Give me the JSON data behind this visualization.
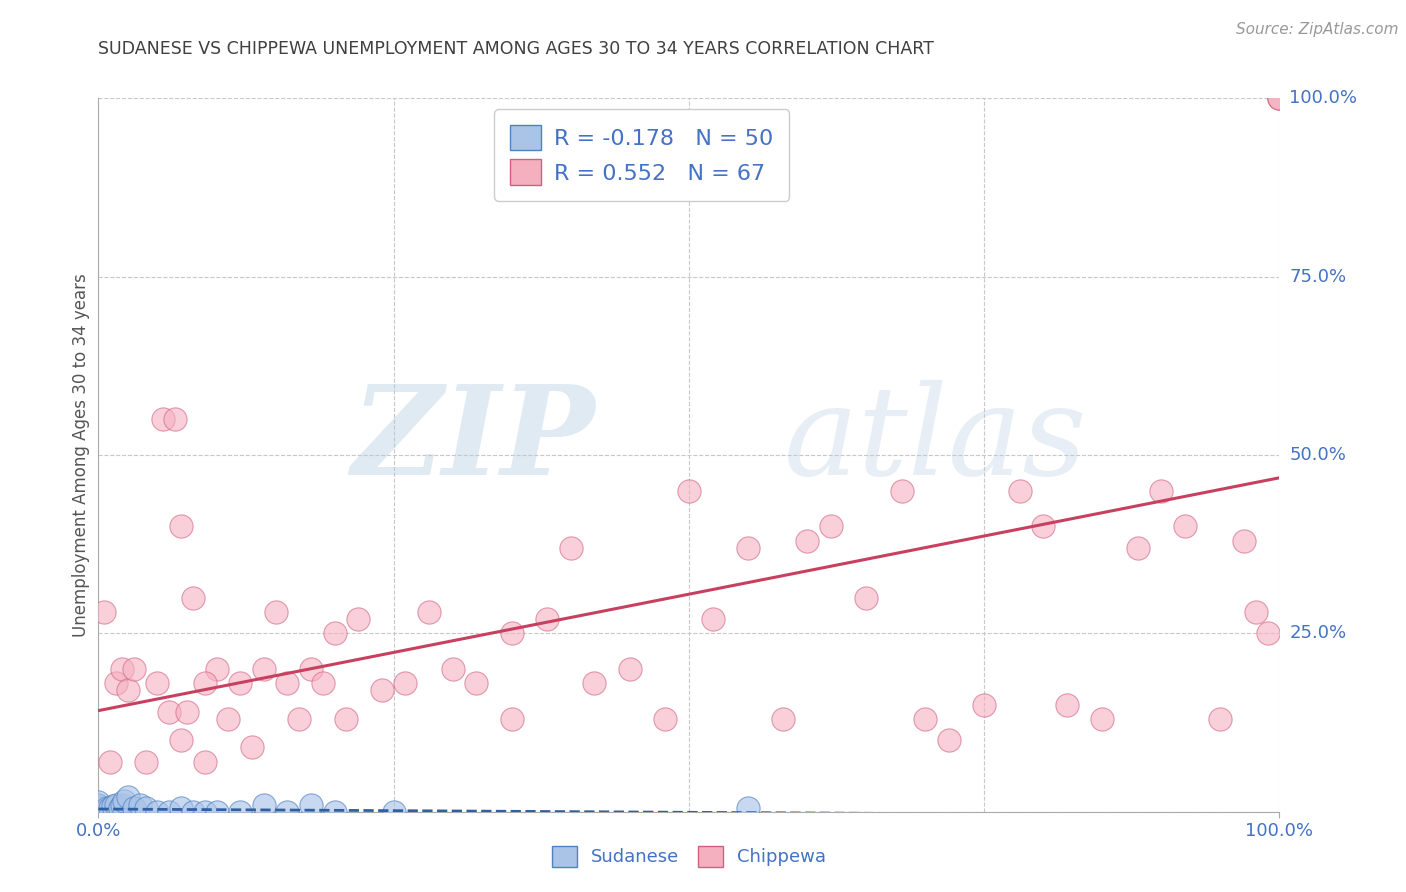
{
  "title": "SUDANESE VS CHIPPEWA UNEMPLOYMENT AMONG AGES 30 TO 34 YEARS CORRELATION CHART",
  "source": "Source: ZipAtlas.com",
  "ylabel": "Unemployment Among Ages 30 to 34 years",
  "sudanese_R": -0.178,
  "sudanese_N": 50,
  "chippewa_R": 0.552,
  "chippewa_N": 67,
  "sudanese_color": "#aac4e8",
  "chippewa_color": "#f5b0c0",
  "sudanese_edge_color": "#5080c0",
  "chippewa_edge_color": "#d06080",
  "sudanese_line_color": "#3060a0",
  "chippewa_line_color": "#c84060",
  "grid_color": "#c8c8c8",
  "title_color": "#404040",
  "tick_color": "#4472c4",
  "legend_text_color": "#4472c4",
  "sudanese_x": [
    0.0,
    0.0,
    0.0,
    0.0,
    0.0,
    0.0,
    0.0,
    0.0,
    0.0,
    0.0,
    0.0,
    0.0,
    0.0,
    0.0,
    0.0,
    0.0,
    0.0,
    0.0,
    0.0,
    0.0,
    0.0,
    0.0,
    0.0,
    0.0,
    0.0,
    0.005,
    0.007,
    0.01,
    0.012,
    0.015,
    0.018,
    0.02,
    0.022,
    0.025,
    0.03,
    0.035,
    0.04,
    0.05,
    0.06,
    0.07,
    0.08,
    0.09,
    0.1,
    0.12,
    0.14,
    0.16,
    0.18,
    0.2,
    0.25,
    0.55
  ],
  "sudanese_y": [
    0.0,
    0.0,
    0.0,
    0.0,
    0.0,
    0.0,
    0.0,
    0.0,
    0.0,
    0.0,
    0.0,
    0.0,
    0.0,
    0.0,
    0.0,
    0.0,
    0.0,
    0.0,
    0.0,
    0.0,
    0.005,
    0.005,
    0.008,
    0.01,
    0.013,
    0.0,
    0.005,
    0.005,
    0.008,
    0.01,
    0.005,
    0.01,
    0.015,
    0.02,
    0.005,
    0.01,
    0.005,
    0.0,
    0.0,
    0.005,
    0.0,
    0.0,
    0.0,
    0.0,
    0.01,
    0.0,
    0.01,
    0.0,
    0.0,
    0.005
  ],
  "chippewa_x": [
    0.005,
    0.01,
    0.015,
    0.02,
    0.025,
    0.03,
    0.04,
    0.05,
    0.055,
    0.06,
    0.065,
    0.07,
    0.075,
    0.08,
    0.09,
    0.1,
    0.11,
    0.12,
    0.13,
    0.14,
    0.15,
    0.16,
    0.17,
    0.18,
    0.19,
    0.2,
    0.21,
    0.22,
    0.24,
    0.26,
    0.28,
    0.3,
    0.32,
    0.35,
    0.38,
    0.4,
    0.42,
    0.45,
    0.48,
    0.5,
    0.52,
    0.55,
    0.58,
    0.6,
    0.62,
    0.65,
    0.68,
    0.7,
    0.72,
    0.75,
    0.78,
    0.8,
    0.82,
    0.85,
    0.88,
    0.9,
    0.92,
    0.95,
    0.97,
    0.98,
    0.99,
    1.0,
    1.0,
    1.0,
    0.07,
    0.09,
    0.35
  ],
  "chippewa_y": [
    0.28,
    0.07,
    0.18,
    0.2,
    0.17,
    0.2,
    0.07,
    0.18,
    0.55,
    0.14,
    0.55,
    0.1,
    0.14,
    0.3,
    0.07,
    0.2,
    0.13,
    0.18,
    0.09,
    0.2,
    0.28,
    0.18,
    0.13,
    0.2,
    0.18,
    0.25,
    0.13,
    0.27,
    0.17,
    0.18,
    0.28,
    0.2,
    0.18,
    0.13,
    0.27,
    0.37,
    0.18,
    0.2,
    0.13,
    0.45,
    0.27,
    0.37,
    0.13,
    0.38,
    0.4,
    0.3,
    0.45,
    0.13,
    0.1,
    0.15,
    0.45,
    0.4,
    0.15,
    0.13,
    0.37,
    0.45,
    0.4,
    0.13,
    0.38,
    0.28,
    0.25,
    1.0,
    1.0,
    1.0,
    0.4,
    0.18,
    0.25
  ],
  "xlim": [
    0.0,
    1.0
  ],
  "ylim": [
    0.0,
    1.0
  ],
  "grid_yticks": [
    0.0,
    0.25,
    0.5,
    0.75,
    1.0
  ],
  "grid_xticks": [
    0.0,
    0.25,
    0.5,
    0.75,
    1.0
  ],
  "right_ytick_labels": [
    "100.0%",
    "75.0%",
    "50.0%",
    "25.0%",
    ""
  ],
  "right_ytick_vals": [
    1.0,
    0.75,
    0.5,
    0.25,
    0.0
  ]
}
